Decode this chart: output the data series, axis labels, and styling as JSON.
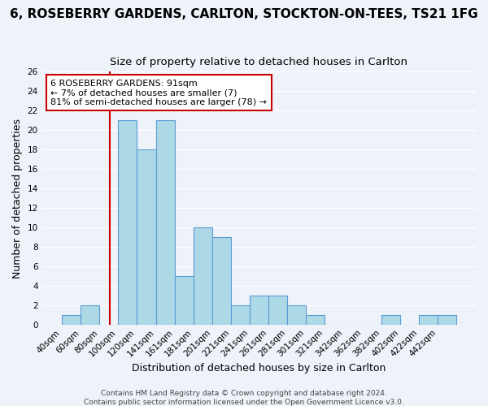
{
  "title": "6, ROSEBERRY GARDENS, CARLTON, STOCKTON-ON-TEES, TS21 1FG",
  "subtitle": "Size of property relative to detached houses in Carlton",
  "xlabel": "Distribution of detached houses by size in Carlton",
  "ylabel": "Number of detached properties",
  "bins": [
    "40sqm",
    "60sqm",
    "80sqm",
    "100sqm",
    "120sqm",
    "141sqm",
    "161sqm",
    "181sqm",
    "201sqm",
    "221sqm",
    "241sqm",
    "261sqm",
    "281sqm",
    "301sqm",
    "321sqm",
    "342sqm",
    "362sqm",
    "382sqm",
    "402sqm",
    "422sqm",
    "442sqm"
  ],
  "counts": [
    1,
    2,
    0,
    21,
    18,
    21,
    5,
    10,
    9,
    2,
    3,
    3,
    2,
    1,
    0,
    0,
    0,
    1,
    0,
    1,
    1
  ],
  "bin_edges": [
    40,
    60,
    80,
    100,
    120,
    141,
    161,
    181,
    201,
    221,
    241,
    261,
    281,
    301,
    321,
    342,
    362,
    382,
    402,
    422,
    442,
    462
  ],
  "bar_color": "#add8e6",
  "bar_edge_color": "#5b9bd5",
  "reference_line_x": 91,
  "annotation_line1": "6 ROSEBERRY GARDENS: 91sqm",
  "annotation_line2": "← 7% of detached houses are smaller (7)",
  "annotation_line3": "81% of semi-detached houses are larger (78) →",
  "annotation_box_color": "#ffffff",
  "annotation_box_edge_color": "#cc0000",
  "vline_color": "#cc0000",
  "ylim": [
    0,
    26
  ],
  "yticks": [
    0,
    2,
    4,
    6,
    8,
    10,
    12,
    14,
    16,
    18,
    20,
    22,
    24,
    26
  ],
  "footer1": "Contains HM Land Registry data © Crown copyright and database right 2024.",
  "footer2": "Contains public sector information licensed under the Open Government Licence v3.0.",
  "background_color": "#eef2f9",
  "grid_color": "#ffffff",
  "title_fontsize": 11,
  "subtitle_fontsize": 9.5,
  "axis_label_fontsize": 9,
  "tick_fontsize": 7.5,
  "footer_fontsize": 6.5
}
